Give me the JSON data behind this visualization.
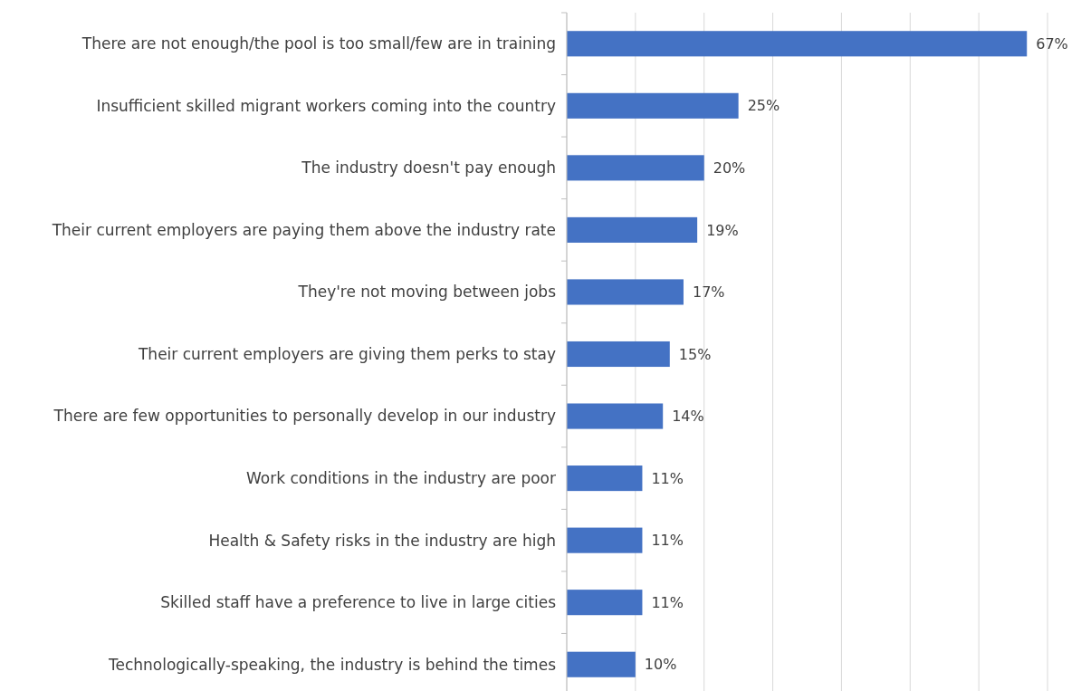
{
  "chart_data": {
    "type": "bar",
    "orientation": "horizontal",
    "categories": [
      "There are not enough/the pool is too small/few are in training",
      "Insufficient skilled migrant workers coming into the country",
      "The industry doesn't pay enough",
      "Their current employers are paying them above the industry rate",
      "They're not moving between jobs",
      "Their current employers are giving them perks to stay",
      "There are few opportunities to personally develop in our industry",
      "Work conditions in the industry are poor",
      "Health & Safety risks in the industry are high",
      "Skilled staff have a preference to live in large cities",
      "Technologically-speaking, the industry is behind the times"
    ],
    "values": [
      67,
      25,
      20,
      19,
      17,
      15,
      14,
      11,
      11,
      11,
      10
    ],
    "value_labels": [
      "67%",
      "25%",
      "20%",
      "19%",
      "17%",
      "15%",
      "14%",
      "11%",
      "11%",
      "11%",
      "10%"
    ],
    "color": "#4472c4",
    "xlim": [
      0,
      70
    ],
    "xticks": [
      {
        "value": 0,
        "label": null
      },
      {
        "value": 10,
        "label": null
      },
      {
        "value": 20,
        "label": null
      },
      {
        "value": 30,
        "label": null
      },
      {
        "value": 40,
        "label": null
      },
      {
        "value": 50,
        "label": null
      },
      {
        "value": 60,
        "label": null
      },
      {
        "value": 70,
        "label": null
      }
    ],
    "tick_labels": "y",
    "grid": "x"
  }
}
